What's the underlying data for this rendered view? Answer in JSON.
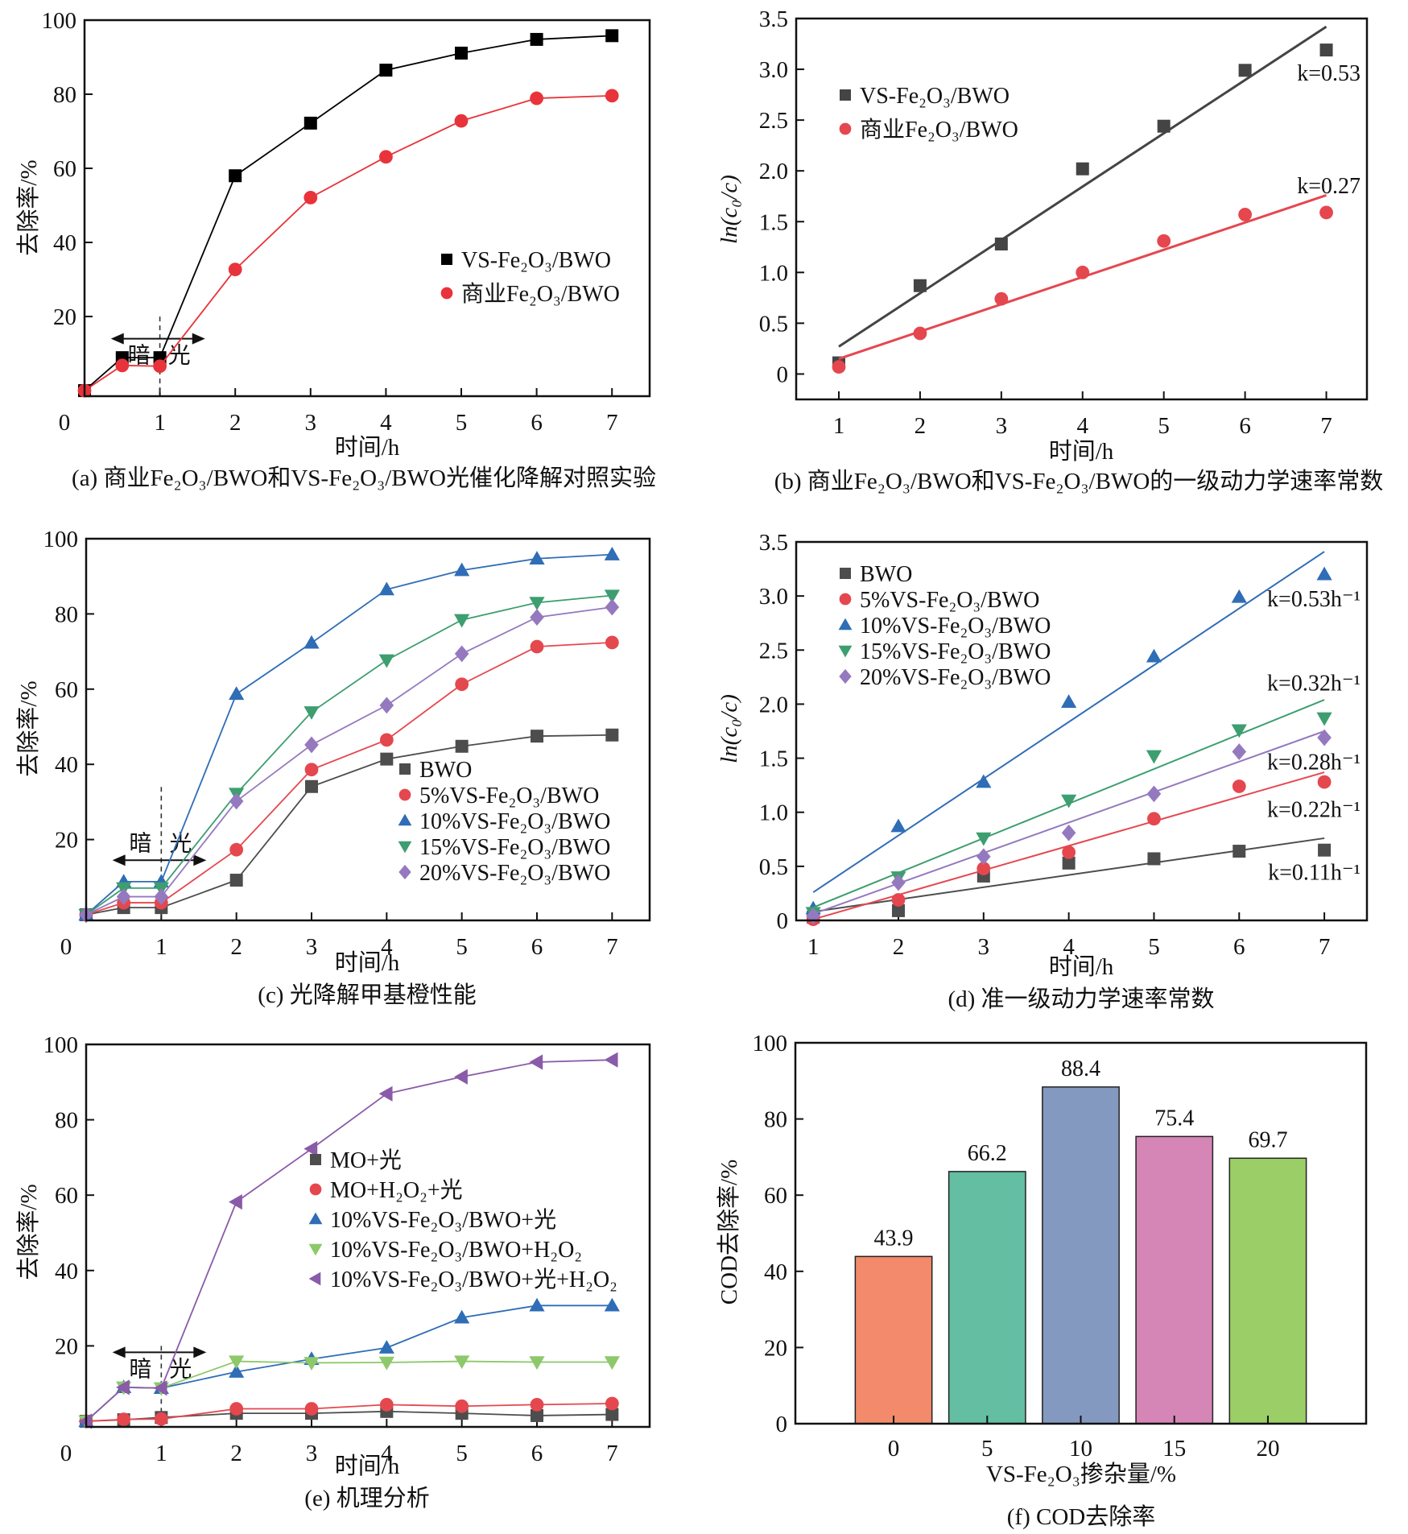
{
  "chart_data": [
    {
      "id": "a",
      "type": "line",
      "title": "",
      "caption": "(a) 商业Fe₂O₃/BWO和VS-Fe₂O₃/BWO光催化降解对照实验",
      "xlabel": "时间/h",
      "ylabel": "去除率/%",
      "xlim": [
        0,
        7.5
      ],
      "ylim": [
        -1.5,
        100
      ],
      "xticks": [
        0,
        1,
        2,
        3,
        4,
        5,
        6,
        7
      ],
      "yticks": [
        20,
        40,
        60,
        80,
        100
      ],
      "grid": false,
      "legend_position": "center-right",
      "annotations": {
        "dark": "暗",
        "light": "光",
        "divider_x": 1
      },
      "x": [
        0,
        0.5,
        1,
        2,
        3,
        4,
        5,
        6,
        7
      ],
      "series": [
        {
          "name": "VS-Fe₂O₃/BWO",
          "marker": "square",
          "color": "#000000",
          "values": [
            0,
            8.9,
            8.9,
            58.0,
            72.2,
            86.5,
            91.1,
            94.8,
            95.8
          ]
        },
        {
          "name": "商业Fe₂O₃/BWO",
          "marker": "circle",
          "color": "#e8333a",
          "values": [
            0,
            6.8,
            6.6,
            32.7,
            52.1,
            63.1,
            72.8,
            78.9,
            79.6
          ]
        }
      ]
    },
    {
      "id": "b",
      "type": "scatter",
      "title": "",
      "caption": "(b) 商业Fe₂O₃/BWO和VS-Fe₂O₃/BWO的一级动力学速率常数",
      "xlabel": "时间/h",
      "ylabel": "ln(c₀/c)",
      "xlim": [
        0.475,
        7.5
      ],
      "ylim": [
        -0.25,
        3.5
      ],
      "xticks": [
        1,
        2,
        3,
        4,
        5,
        6,
        7
      ],
      "yticks": [
        0,
        0.5,
        1.0,
        1.5,
        2.0,
        2.5,
        3.0,
        3.5
      ],
      "ytick_labels": [
        "0",
        "0.5",
        "1.0",
        "1.5",
        "2.0",
        "2.5",
        "3.0",
        "3.5"
      ],
      "grid": false,
      "legend_position": "top-left",
      "x": [
        1,
        2,
        3,
        4,
        5,
        6,
        7
      ],
      "series": [
        {
          "name": "VS-Fe₂O₃/BWO",
          "marker": "square",
          "color": "#444444",
          "values": [
            0.11,
            0.87,
            1.28,
            2.02,
            2.44,
            2.99,
            3.19
          ],
          "fit": [
            0.27,
            3.42
          ],
          "k_label": "k=0.53"
        },
        {
          "name": "商业Fe₂O₃/BWO",
          "marker": "circle",
          "color": "#e5474f",
          "values": [
            0.07,
            0.4,
            0.74,
            1.0,
            1.31,
            1.57,
            1.59
          ],
          "fit": [
            0.15,
            1.76
          ],
          "k_label": "k=0.27"
        }
      ]
    },
    {
      "id": "c",
      "type": "line",
      "title": "",
      "caption": "(c) 光降解甲基橙性能",
      "xlabel": "时间/h",
      "ylabel": "去除率/%",
      "xlim": [
        0,
        7.5
      ],
      "ylim": [
        -1.5,
        100
      ],
      "xticks": [
        0,
        1,
        2,
        3,
        4,
        5,
        6,
        7
      ],
      "yticks": [
        20,
        40,
        60,
        80,
        100
      ],
      "grid": false,
      "legend_position": "center-right",
      "annotations": {
        "dark": "暗",
        "light": "光",
        "divider_x": 1
      },
      "x": [
        0,
        0.5,
        1,
        2,
        3,
        4,
        5,
        6,
        7
      ],
      "series": [
        {
          "name": "BWO",
          "marker": "square",
          "color": "#4d4d4d",
          "values": [
            0,
            1.9,
            1.9,
            9.2,
            34.1,
            41.4,
            44.8,
            47.5,
            47.8
          ]
        },
        {
          "name": "5%VS-Fe₂O₃/BWO",
          "marker": "circle",
          "color": "#e5474f",
          "values": [
            0,
            3.2,
            3.2,
            17.3,
            38.6,
            46.5,
            61.3,
            71.3,
            72.4
          ]
        },
        {
          "name": "10%VS-Fe₂O₃/BWO",
          "marker": "triangle-up",
          "color": "#2f6db6",
          "values": [
            0,
            8.8,
            8.8,
            58.7,
            72.3,
            86.5,
            91.6,
            94.7,
            95.8
          ]
        },
        {
          "name": "15%VS-Fe₂O₃/BWO",
          "marker": "triangle-down",
          "color": "#3d9e6f",
          "values": [
            0,
            7.1,
            7.1,
            32.2,
            53.9,
            67.7,
            78.4,
            83.0,
            84.9
          ]
        },
        {
          "name": "20%VS-Fe₂O₃/BWO",
          "marker": "diamond",
          "color": "#9579bf",
          "values": [
            0,
            4.8,
            4.8,
            30.2,
            45.2,
            55.7,
            69.4,
            79.1,
            81.8
          ]
        }
      ]
    },
    {
      "id": "d",
      "type": "scatter",
      "title": "",
      "caption": "(d) 准一级动力学速率常数",
      "xlabel": "时间/h",
      "ylabel": "ln(c₀/c)",
      "xlim": [
        0.8,
        7.5
      ],
      "ylim": [
        0,
        3.5
      ],
      "xticks": [
        1,
        2,
        3,
        4,
        5,
        6,
        7
      ],
      "yticks": [
        0,
        0.5,
        1.0,
        1.5,
        2.0,
        2.5,
        3.0,
        3.5
      ],
      "ytick_labels": [
        "0",
        "0.5",
        "1.0",
        "1.5",
        "2.0",
        "2.5",
        "3.0",
        "3.5"
      ],
      "grid": false,
      "legend_position": "top-left",
      "x": [
        1,
        2,
        3,
        4,
        5,
        6,
        7
      ],
      "series": [
        {
          "name": "BWO",
          "marker": "square",
          "color": "#4d4d4d",
          "values": [
            0.03,
            0.09,
            0.41,
            0.53,
            0.57,
            0.64,
            0.65
          ],
          "fit": [
            0.08,
            0.76
          ],
          "k_label": "k=0.11h⁻¹"
        },
        {
          "name": "5%VS-Fe₂O₃/BWO",
          "marker": "circle",
          "color": "#e5474f",
          "values": [
            0.01,
            0.19,
            0.48,
            0.63,
            0.94,
            1.24,
            1.28
          ],
          "fit": [
            0.01,
            1.37
          ],
          "k_label": "k=0.22h⁻¹"
        },
        {
          "name": "10%VS-Fe₂O₃/BWO",
          "marker": "triangle-up",
          "color": "#2f6db6",
          "values": [
            0.11,
            0.87,
            1.28,
            2.02,
            2.44,
            2.99,
            3.2
          ],
          "fit": [
            0.26,
            3.41
          ],
          "k_label": "k=0.53h⁻¹"
        },
        {
          "name": "15%VS-Fe₂O₃/BWO",
          "marker": "triangle-down",
          "color": "#3d9e6f",
          "values": [
            0.07,
            0.4,
            0.76,
            1.11,
            1.52,
            1.76,
            1.87
          ],
          "fit": [
            0.12,
            2.04
          ],
          "k_label": "k=0.32h⁻¹"
        },
        {
          "name": "20%VS-Fe₂O₃/BWO",
          "marker": "diamond",
          "color": "#9579bf",
          "values": [
            0.04,
            0.35,
            0.59,
            0.81,
            1.17,
            1.56,
            1.69
          ],
          "fit": [
            0.06,
            1.75
          ],
          "k_label": "k=0.28h⁻¹"
        }
      ]
    },
    {
      "id": "e",
      "type": "line",
      "title": "",
      "caption": "(e) 机理分析",
      "xlabel": "时间/h",
      "ylabel": "去除率/%",
      "xlim": [
        0,
        7.5
      ],
      "ylim": [
        -1.5,
        100
      ],
      "xticks": [
        0,
        1,
        2,
        3,
        4,
        5,
        6,
        7
      ],
      "yticks": [
        20,
        40,
        60,
        80,
        100
      ],
      "grid": false,
      "legend_position": "center-right",
      "annotations": {
        "dark": "暗",
        "light": "光",
        "divider_x": 1
      },
      "x": [
        0,
        0.5,
        1,
        2,
        3,
        4,
        5,
        6,
        7
      ],
      "series": [
        {
          "name": "MO+光",
          "marker": "square",
          "color": "#4d4d4d",
          "values": [
            0,
            0.4,
            1.0,
            2.1,
            2.1,
            2.6,
            2.1,
            1.5,
            1.8
          ]
        },
        {
          "name": "MO+H₂O₂+光",
          "marker": "circle",
          "color": "#e5474f",
          "values": [
            0,
            0.5,
            0.6,
            3.3,
            3.3,
            4.4,
            4.0,
            4.4,
            4.7
          ]
        },
        {
          "name": "10%VS-Fe₂O₃/BWO+光",
          "marker": "triangle-up",
          "color": "#2f6db6",
          "values": [
            0,
            9.0,
            8.8,
            13.1,
            16.5,
            19.5,
            27.5,
            30.7,
            30.7
          ]
        },
        {
          "name": "10%VS-Fe₂O₃/BWO+H₂O₂",
          "marker": "triangle-down",
          "color": "#8dc96b",
          "values": [
            0,
            9.0,
            8.8,
            15.9,
            15.5,
            15.6,
            15.9,
            15.7,
            15.7
          ]
        },
        {
          "name": "10%VS-Fe₂O₃/BWO+光+H₂O₂",
          "marker": "triangle-left",
          "color": "#8a5ba8",
          "values": [
            0,
            9.0,
            8.8,
            58.2,
            72.3,
            86.9,
            91.4,
            95.3,
            95.9
          ]
        }
      ]
    },
    {
      "id": "f",
      "type": "bar",
      "title": "",
      "caption": "(f) COD去除率",
      "xlabel": "VS-Fe₂O₃掺杂量/%",
      "ylabel": "COD去除率/%",
      "ylim": [
        0,
        100
      ],
      "yticks": [
        0,
        20,
        40,
        60,
        80,
        100
      ],
      "grid": false,
      "categories": [
        "0",
        "5",
        "10",
        "15",
        "20"
      ],
      "values": [
        43.9,
        66.2,
        88.4,
        75.4,
        69.7
      ],
      "data_labels": [
        "43.9",
        "66.2",
        "88.4",
        "75.4",
        "69.7"
      ],
      "colors": [
        "#f28a6b",
        "#63bea2",
        "#8499c0",
        "#d685b7",
        "#9bce66"
      ]
    }
  ]
}
